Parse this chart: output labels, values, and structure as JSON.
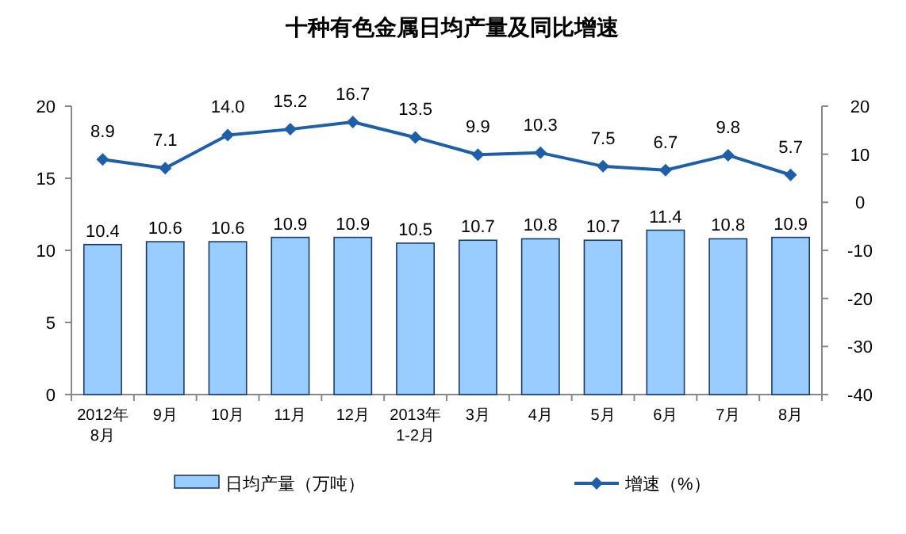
{
  "chart_data": {
    "type": "bar",
    "title": "十种有色金属日均产量及同比增速",
    "categories": [
      "2012年\n8月",
      "9月",
      "10月",
      "11月",
      "12月",
      "2013年\n1-2月",
      "3月",
      "4月",
      "5月",
      "6月",
      "7月",
      "8月"
    ],
    "series": [
      {
        "name": "日均产量（万吨）",
        "color": "#99ccff",
        "values": [
          10.4,
          10.6,
          10.6,
          10.9,
          10.9,
          10.5,
          10.7,
          10.8,
          10.7,
          11.4,
          10.8,
          10.9
        ]
      },
      {
        "name": "增速（%）",
        "type": "line",
        "axis": "y2",
        "color": "#1f5fa8",
        "marker": "diamond",
        "values": [
          8.9,
          7.1,
          14.0,
          15.2,
          16.7,
          13.5,
          9.9,
          10.3,
          7.5,
          6.7,
          9.8,
          5.7
        ],
        "value_labels": [
          "8.9",
          "7.1",
          "14.0",
          "15.2",
          "16.7",
          "13.5",
          "9.9",
          "10.3",
          "7.5",
          "6.7",
          "9.8",
          "5.7"
        ]
      }
    ],
    "ylim": [
      0,
      20
    ],
    "yticks": [
      0,
      5,
      10,
      15,
      20
    ],
    "y2lim": [
      -40,
      20
    ],
    "y2ticks": [
      -40,
      -30,
      -20,
      -10,
      0,
      10,
      20
    ],
    "data_labels": true,
    "grid": false,
    "legend": "bottom"
  }
}
